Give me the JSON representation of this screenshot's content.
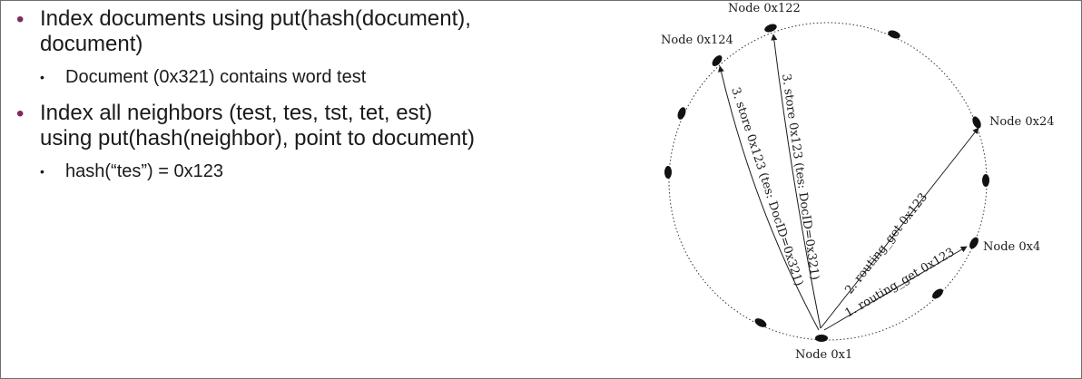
{
  "slide": {
    "bullets": [
      {
        "text": "Index documents using put(hash(document), document)",
        "sub": [
          "Document (0x321) contains word test"
        ]
      },
      {
        "text": "Index all neighbors (test, tes, tst, tet, est) using put(hash(neighbor), point to document)",
        "sub": [
          "hash(“tes”) = 0x123"
        ]
      }
    ]
  },
  "diagram": {
    "nodes": {
      "n122": "Node 0x122",
      "n124": "Node 0x124",
      "n24": "Node 0x24",
      "n4": "Node 0x4",
      "n1": "Node 0x1"
    },
    "edges": {
      "e1": "1. routing_get 0x123",
      "e2": "2. routing_get 0x123",
      "e3a": "3. store 0x123 (tes: DocID=0x321)",
      "e3b": "3. store 0x123 (tes: DocID=0x321)"
    }
  }
}
